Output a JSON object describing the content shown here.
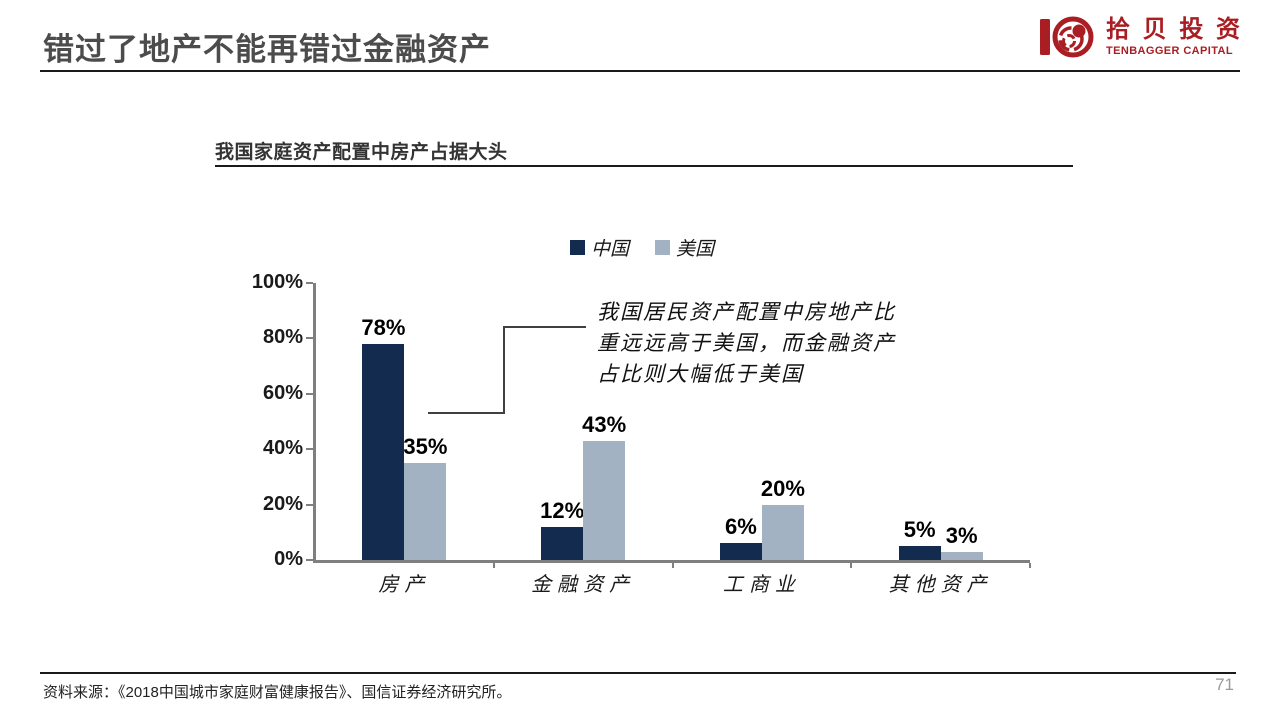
{
  "header": {
    "title": "错过了地产不能再错过金融资产",
    "logo": {
      "name_chars": [
        "拾",
        "贝",
        "投",
        "资"
      ],
      "subtitle": "TENBAGGER CAPITAL",
      "color": "#a91e23"
    }
  },
  "chart": {
    "title": "我国家庭资产配置中房产占据大头",
    "annotation_lines": [
      "我国居民资产配置中房地产比",
      "重远远高于美国，而金融资产",
      "占比则大幅低于美国"
    ]
  },
  "chart_data": {
    "type": "bar",
    "title": "我国家庭资产配置中房产占据大头",
    "categories": [
      "房产",
      "金融资产",
      "工商业",
      "其他资产"
    ],
    "series": [
      {
        "name": "中国",
        "color": "#132b4f",
        "values": [
          78,
          12,
          6,
          5
        ]
      },
      {
        "name": "美国",
        "color": "#a3b2c2",
        "values": [
          35,
          43,
          20,
          3
        ]
      }
    ],
    "data_labels": [
      [
        "78%",
        "12%",
        "6%",
        "5%"
      ],
      [
        "35%",
        "43%",
        "20%",
        "3%"
      ]
    ],
    "y_ticks": [
      "0%",
      "20%",
      "40%",
      "60%",
      "80%",
      "100%"
    ],
    "ylim": [
      0,
      100
    ],
    "legend_position": "top-center",
    "grid": false,
    "annotation": "我国居民资产配置中房地产比重远远高于美国，而金融资产占比则大幅低于美国"
  },
  "footer": {
    "source": "资料来源：《2018中国城市家庭财富健康报告》、国信证券经济研究所。",
    "page_number": "71"
  }
}
